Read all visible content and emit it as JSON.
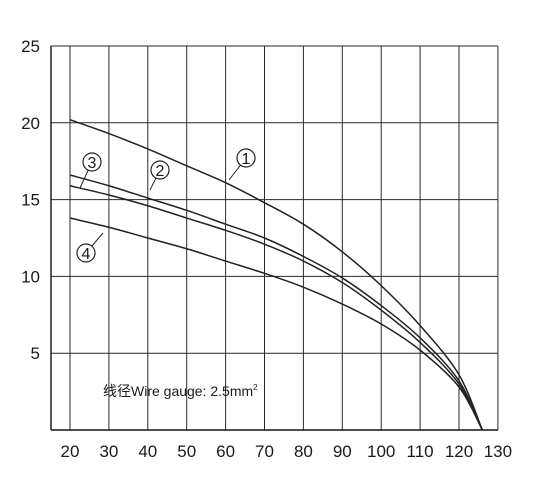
{
  "chart_data": {
    "type": "line",
    "title": "",
    "xlabel": "",
    "ylabel": "",
    "xlim": [
      15,
      130
    ],
    "ylim": [
      0,
      25
    ],
    "x_ticks": [
      "20",
      "30",
      "40",
      "50",
      "60",
      "70",
      "80",
      "90",
      "100",
      "110",
      "120",
      "130"
    ],
    "y_ticks": [
      "5",
      "10",
      "15",
      "20",
      "25"
    ],
    "grid": true,
    "legend": "none",
    "annotation": {
      "prefix": "线径Wire gauge: 2.5mm",
      "superscript": "2"
    },
    "series": [
      {
        "name": "1",
        "marker_label": "①",
        "color": "#222222",
        "x": [
          20,
          30,
          40,
          50,
          60,
          70,
          80,
          90,
          100,
          110,
          120,
          126
        ],
        "y": [
          20.2,
          19.3,
          18.3,
          17.2,
          16.1,
          14.8,
          13.4,
          11.6,
          9.4,
          6.8,
          3.6,
          0
        ]
      },
      {
        "name": "2",
        "marker_label": "②",
        "color": "#222222",
        "x": [
          20,
          30,
          40,
          50,
          60,
          70,
          80,
          90,
          100,
          110,
          120,
          126
        ],
        "y": [
          16.6,
          15.9,
          15.1,
          14.3,
          13.4,
          12.5,
          11.3,
          9.9,
          8.1,
          6.0,
          3.2,
          0
        ]
      },
      {
        "name": "3",
        "marker_label": "③",
        "color": "#222222",
        "x": [
          20,
          30,
          40,
          50,
          60,
          70,
          80,
          90,
          100,
          110,
          120,
          126
        ],
        "y": [
          15.9,
          15.3,
          14.6,
          13.8,
          13.0,
          12.1,
          11.0,
          9.6,
          7.8,
          5.7,
          3.0,
          0
        ]
      },
      {
        "name": "4",
        "marker_label": "④",
        "color": "#222222",
        "x": [
          20,
          30,
          40,
          50,
          60,
          70,
          80,
          90,
          100,
          110,
          120,
          126
        ],
        "y": [
          13.8,
          13.2,
          12.5,
          11.8,
          11.0,
          10.2,
          9.3,
          8.2,
          6.9,
          5.2,
          2.8,
          0
        ]
      }
    ]
  }
}
